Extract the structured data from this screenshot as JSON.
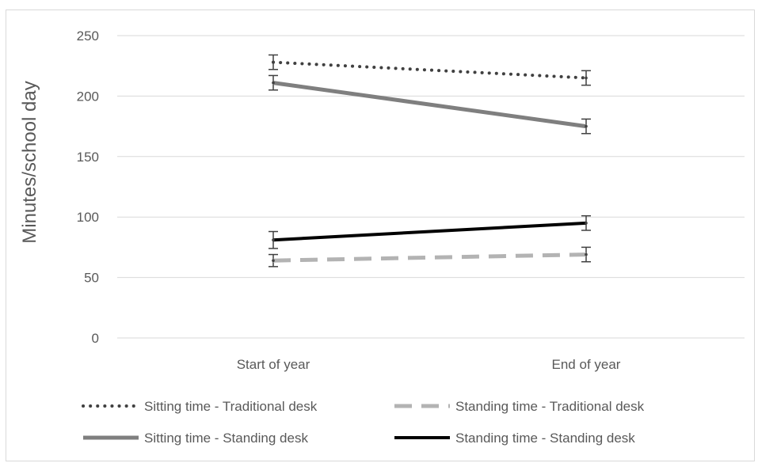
{
  "chart_data": {
    "type": "line",
    "title": "",
    "xlabel": "",
    "ylabel": "Minutes/school day",
    "categories": [
      "Start of year",
      "End of year"
    ],
    "ylim": [
      0,
      250
    ],
    "yticks": [
      0,
      50,
      100,
      150,
      200,
      250
    ],
    "grid": true,
    "legend_position": "bottom",
    "series": [
      {
        "name": "Sitting time - Traditional desk",
        "values": [
          228,
          215
        ],
        "error": [
          6,
          6
        ],
        "color": "#404040",
        "style": "dotted"
      },
      {
        "name": "Standing time - Traditional desk",
        "values": [
          64,
          69
        ],
        "error": [
          5,
          6
        ],
        "color": "#b3b3b3",
        "style": "dashed"
      },
      {
        "name": "Sitting time - Standing desk",
        "values": [
          211,
          175
        ],
        "error": [
          6,
          6
        ],
        "color": "#7f7f7f",
        "style": "solid"
      },
      {
        "name": "Standing time - Standing  desk",
        "values": [
          81,
          95
        ],
        "error": [
          7,
          6
        ],
        "color": "#000000",
        "style": "solid"
      }
    ]
  }
}
